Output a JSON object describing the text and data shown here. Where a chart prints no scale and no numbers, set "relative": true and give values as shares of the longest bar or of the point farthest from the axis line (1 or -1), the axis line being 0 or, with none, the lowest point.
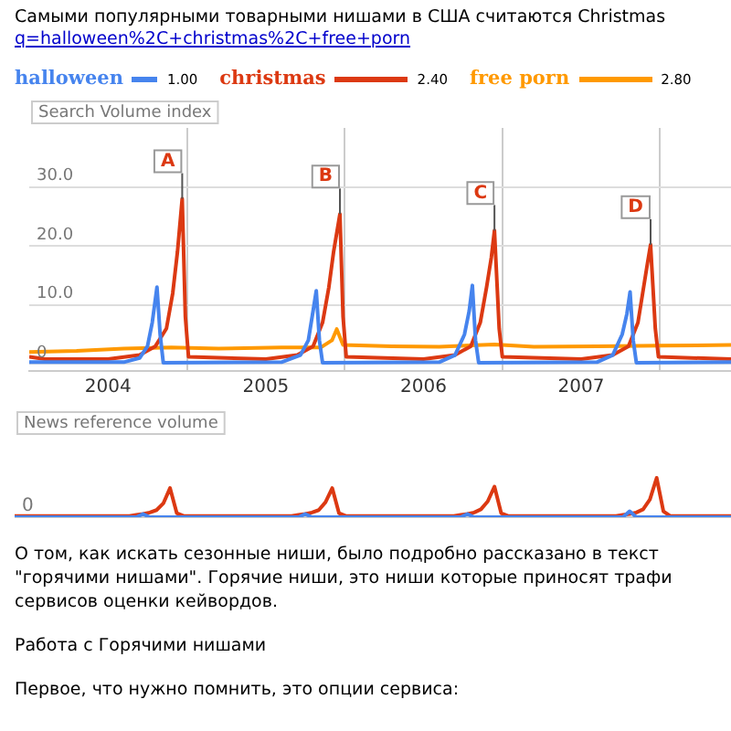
{
  "chart_data": [
    {
      "type": "line",
      "title": "Самыми популярными товарными нишами в США считаются Christmas",
      "subtitle": "q=halloween%2C+christmas%2C+free+porn",
      "ylabel": "Search Volume index",
      "legend": "top",
      "grid": true,
      "xlim": [
        2004,
        2008.45
      ],
      "xticks": [
        {
          "value": 2005,
          "label": null
        },
        {
          "value": 2006,
          "label": null
        },
        {
          "value": 2007,
          "label": null
        },
        {
          "value": 2008,
          "label": null
        },
        {
          "value": 2004.5,
          "label": "2004"
        },
        {
          "value": 2005.5,
          "label": "2005"
        },
        {
          "value": 2006.5,
          "label": "2006"
        },
        {
          "value": 2007.5,
          "label": "2007"
        }
      ],
      "ylim": [
        -1.2,
        40
      ],
      "yticks": [
        0,
        {
          "value": 10,
          "label": "10.0"
        },
        {
          "value": 20,
          "label": "20.0"
        },
        {
          "value": 30,
          "label": "30.0"
        }
      ],
      "series": [
        {
          "name": "halloween",
          "color": "#4684ee",
          "x": [
            2004,
            2004.6,
            2004.7,
            2004.75,
            2004.78,
            2004.81,
            2004.83,
            2004.85,
            2005.6,
            2005.72,
            2005.77,
            2005.8,
            2005.82,
            2005.84,
            2005.86,
            2006.6,
            2006.7,
            2006.76,
            2006.79,
            2006.81,
            2006.83,
            2006.85,
            2007.6,
            2007.7,
            2007.76,
            2007.79,
            2007.81,
            2007.83,
            2007.85,
            2008.45
          ],
          "values": [
            0.3,
            0.3,
            1,
            3,
            7,
            13,
            5,
            0.2,
            0.3,
            1.5,
            4,
            9,
            12.4,
            4,
            0.2,
            0.3,
            1.5,
            5,
            9,
            13.3,
            4,
            0.2,
            0.3,
            1.5,
            5,
            8.5,
            12.2,
            4,
            0.2,
            0.3
          ]
        },
        {
          "name": "christmas",
          "color": "#dc3912",
          "x": [
            2004,
            2004.1,
            2004.5,
            2004.7,
            2004.8,
            2004.87,
            2004.91,
            2004.94,
            2004.97,
            2004.99,
            2005.01,
            2005.5,
            2005.7,
            2005.8,
            2005.86,
            2005.9,
            2005.93,
            2005.97,
            2005.99,
            2006.01,
            2006.5,
            2006.7,
            2006.8,
            2006.86,
            2006.9,
            2006.93,
            2006.95,
            2006.98,
            2007,
            2007.5,
            2007.7,
            2007.8,
            2007.86,
            2007.89,
            2007.92,
            2007.94,
            2007.97,
            2007.99,
            2008.45
          ],
          "values": [
            1.2,
            0.8,
            0.8,
            1.5,
            3,
            6,
            12,
            19,
            28,
            8,
            1.2,
            0.8,
            1.5,
            3,
            7,
            13,
            19,
            25.4,
            8,
            1.2,
            0.8,
            1.5,
            3,
            7,
            13,
            18,
            22.6,
            6,
            1.2,
            0.8,
            1.5,
            3,
            7,
            12,
            17,
            20.2,
            6,
            1.2,
            0.8
          ]
        },
        {
          "name": "free porn",
          "color": "#ff9900",
          "x": [
            2004,
            2004.3,
            2004.6,
            2004.9,
            2005.2,
            2005.6,
            2005.85,
            2005.92,
            2005.95,
            2005.99,
            2006.3,
            2006.6,
            2006.95,
            2007.2,
            2007.6,
            2008,
            2008.45
          ],
          "values": [
            2,
            2.2,
            2.6,
            2.8,
            2.6,
            2.8,
            2.8,
            4,
            5.9,
            3.2,
            3,
            2.9,
            3.3,
            2.9,
            3,
            3.1,
            3.2
          ]
        }
      ],
      "annotations": [
        "1.00",
        "2.40",
        "2.80",
        {
          "text": "A",
          "x": 2004.97,
          "y": 28
        },
        {
          "text": "B",
          "x": 2005.97,
          "y": 25.4
        },
        {
          "text": "C",
          "x": 2006.95,
          "y": 22.6
        },
        {
          "text": "D",
          "x": 2007.94,
          "y": 20.2
        }
      ]
    },
    {
      "type": "line",
      "ylabel": "News reference volume",
      "relative": true,
      "tick_labels": false,
      "categories": [
        null,
        null,
        null,
        null,
        null,
        null,
        null,
        null,
        null,
        null,
        null,
        null,
        null,
        null,
        null,
        null,
        null,
        null,
        null,
        null,
        null,
        null,
        null,
        null,
        null,
        null,
        null,
        null,
        null,
        null,
        null,
        null,
        null,
        null,
        null,
        null,
        null,
        null,
        null,
        null,
        null,
        null,
        null,
        null,
        null,
        null,
        null,
        null,
        null,
        null,
        null,
        null,
        null,
        null,
        null,
        null,
        null,
        null,
        null,
        null,
        null,
        null,
        null,
        null,
        null,
        null,
        null,
        null,
        null,
        null,
        null,
        null,
        null,
        null,
        null,
        null,
        null,
        null,
        null,
        null,
        null,
        null,
        null,
        null,
        null,
        null,
        null,
        null,
        null,
        null,
        null,
        null,
        null,
        null,
        null,
        null,
        null,
        null,
        null,
        null,
        null,
        null,
        null,
        null,
        null,
        null,
        null
      ],
      "series": [
        {
          "color": "#4684ee",
          "values": [
            0,
            0,
            0,
            0,
            0,
            0,
            0,
            0,
            0,
            0,
            0,
            0,
            0,
            0,
            0,
            0,
            0,
            0,
            0,
            0.08,
            0,
            0,
            0,
            0,
            0,
            0,
            0,
            0,
            0,
            0,
            0,
            0,
            0,
            0,
            0,
            0,
            0,
            0,
            0,
            0,
            0,
            0,
            0,
            0.08,
            0,
            0,
            0,
            0,
            0,
            0,
            0,
            0,
            0,
            0,
            0,
            0,
            0,
            0,
            0,
            0,
            0,
            0,
            0,
            0,
            0,
            0,
            0,
            0.08,
            0,
            0,
            0,
            0,
            0,
            0,
            0,
            0,
            0,
            0,
            0,
            0,
            0,
            0,
            0,
            0,
            0,
            0,
            0,
            0,
            0,
            0,
            0,
            0.15,
            0,
            0,
            0,
            0,
            0,
            0,
            0,
            0,
            0,
            0,
            0,
            0,
            0,
            0,
            0
          ]
        },
        {
          "color": "#dc3912",
          "values": [
            0.03,
            0.03,
            0.03,
            0.03,
            0.03,
            0.03,
            0.03,
            0.03,
            0.03,
            0.03,
            0.03,
            0.03,
            0.03,
            0.03,
            0.03,
            0.03,
            0.03,
            0.03,
            0.06,
            0.08,
            0.12,
            0.18,
            0.35,
            0.74,
            0.1,
            0.03,
            0.03,
            0.03,
            0.03,
            0.03,
            0.03,
            0.03,
            0.03,
            0.03,
            0.03,
            0.03,
            0.03,
            0.03,
            0.03,
            0.03,
            0.03,
            0.03,
            0.06,
            0.08,
            0.12,
            0.18,
            0.38,
            0.74,
            0.1,
            0.03,
            0.03,
            0.03,
            0.03,
            0.03,
            0.03,
            0.03,
            0.03,
            0.03,
            0.03,
            0.03,
            0.03,
            0.03,
            0.03,
            0.03,
            0.03,
            0.03,
            0.06,
            0.08,
            0.12,
            0.2,
            0.4,
            0.78,
            0.1,
            0.03,
            0.03,
            0.03,
            0.03,
            0.03,
            0.03,
            0.03,
            0.03,
            0.03,
            0.03,
            0.03,
            0.03,
            0.03,
            0.03,
            0.03,
            0.03,
            0.03,
            0.06,
            0.08,
            0.12,
            0.2,
            0.45,
            1,
            0.15,
            0.03,
            0.03,
            0.03,
            0.03,
            0.03,
            0.03,
            0.03,
            0.03,
            0.03,
            0.03
          ]
        }
      ],
      "annotations": [
        "0",
        "О том, как искать сезонные ниши, было подробно рассказано в текст",
        "\"горячими нишами\". Горячие ниши, это ниши которые приносят трафи",
        "сервисов оценки кейвордов.",
        "Работа с Горячими нишами",
        "Первое, что нужно помнить, это опции сервиса:"
      ]
    }
  ]
}
